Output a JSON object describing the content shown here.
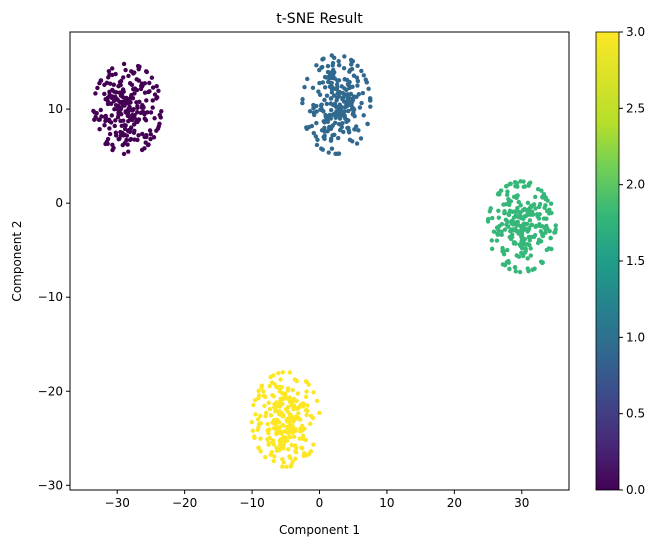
{
  "chart_data": {
    "type": "scatter",
    "title": "t-SNE Result",
    "xlabel": "Component 1",
    "ylabel": "Component 2",
    "xlim": [
      -37,
      37
    ],
    "ylim": [
      -30.5,
      18.2
    ],
    "xticks": [
      -30,
      -20,
      -10,
      0,
      10,
      20,
      30
    ],
    "yticks": [
      -30,
      -20,
      -10,
      0,
      10
    ],
    "grid": false,
    "colormap": "viridis",
    "clusters": [
      {
        "label_value": 0,
        "color": "#440154",
        "center": [
          -28.5,
          10.0
        ],
        "spread": [
          2.4,
          2.3
        ],
        "count": 250
      },
      {
        "label_value": 1,
        "color": "#31688e",
        "center": [
          2.5,
          10.5
        ],
        "spread": [
          2.4,
          2.5
        ],
        "count": 250
      },
      {
        "label_value": 2,
        "color": "#35b779",
        "center": [
          30.0,
          -2.5
        ],
        "spread": [
          2.4,
          2.3
        ],
        "count": 250
      },
      {
        "label_value": 3,
        "color": "#fde725",
        "center": [
          -5.0,
          -23.0
        ],
        "spread": [
          2.4,
          2.4
        ],
        "count": 250
      }
    ],
    "colorbar": {
      "range": [
        0.0,
        3.0
      ],
      "ticks": [
        "0.0",
        "0.5",
        "1.0",
        "1.5",
        "2.0",
        "2.5",
        "3.0"
      ]
    }
  }
}
